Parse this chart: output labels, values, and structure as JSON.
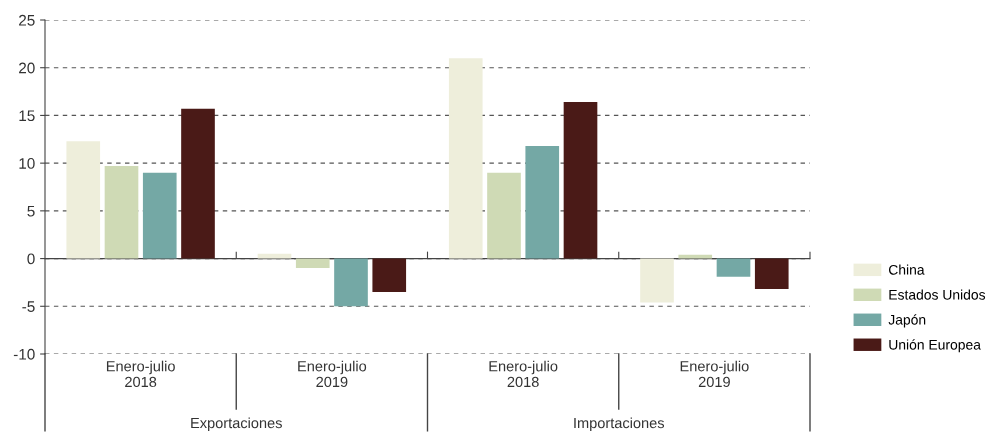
{
  "chart_data": {
    "type": "bar",
    "categories": [
      "Enero-julio\n2018",
      "Enero-julio\n2019",
      "Enero-julio\n2018",
      "Enero-julio\n2019"
    ],
    "series": [
      {
        "name": "China",
        "color": "#eeeedb",
        "values": [
          12.3,
          0.5,
          21.0,
          -4.6
        ]
      },
      {
        "name": "Estados Unidos",
        "color": "#cfdab5",
        "values": [
          9.7,
          -1.0,
          9.0,
          0.4
        ]
      },
      {
        "name": "Japón",
        "color": "#74a8a5",
        "values": [
          9.0,
          -5.0,
          11.8,
          -1.9
        ]
      },
      {
        "name": "Unión Europea",
        "color": "#4a1a17",
        "values": [
          15.7,
          -3.5,
          16.4,
          -3.2
        ]
      }
    ],
    "annotations": [
      "Exportaciones",
      "Importaciones"
    ],
    "ylim": [
      -10,
      25
    ],
    "yticks": [
      -10,
      -5,
      0,
      5,
      10,
      15,
      20,
      25
    ],
    "grid": "y",
    "legend": "right"
  }
}
